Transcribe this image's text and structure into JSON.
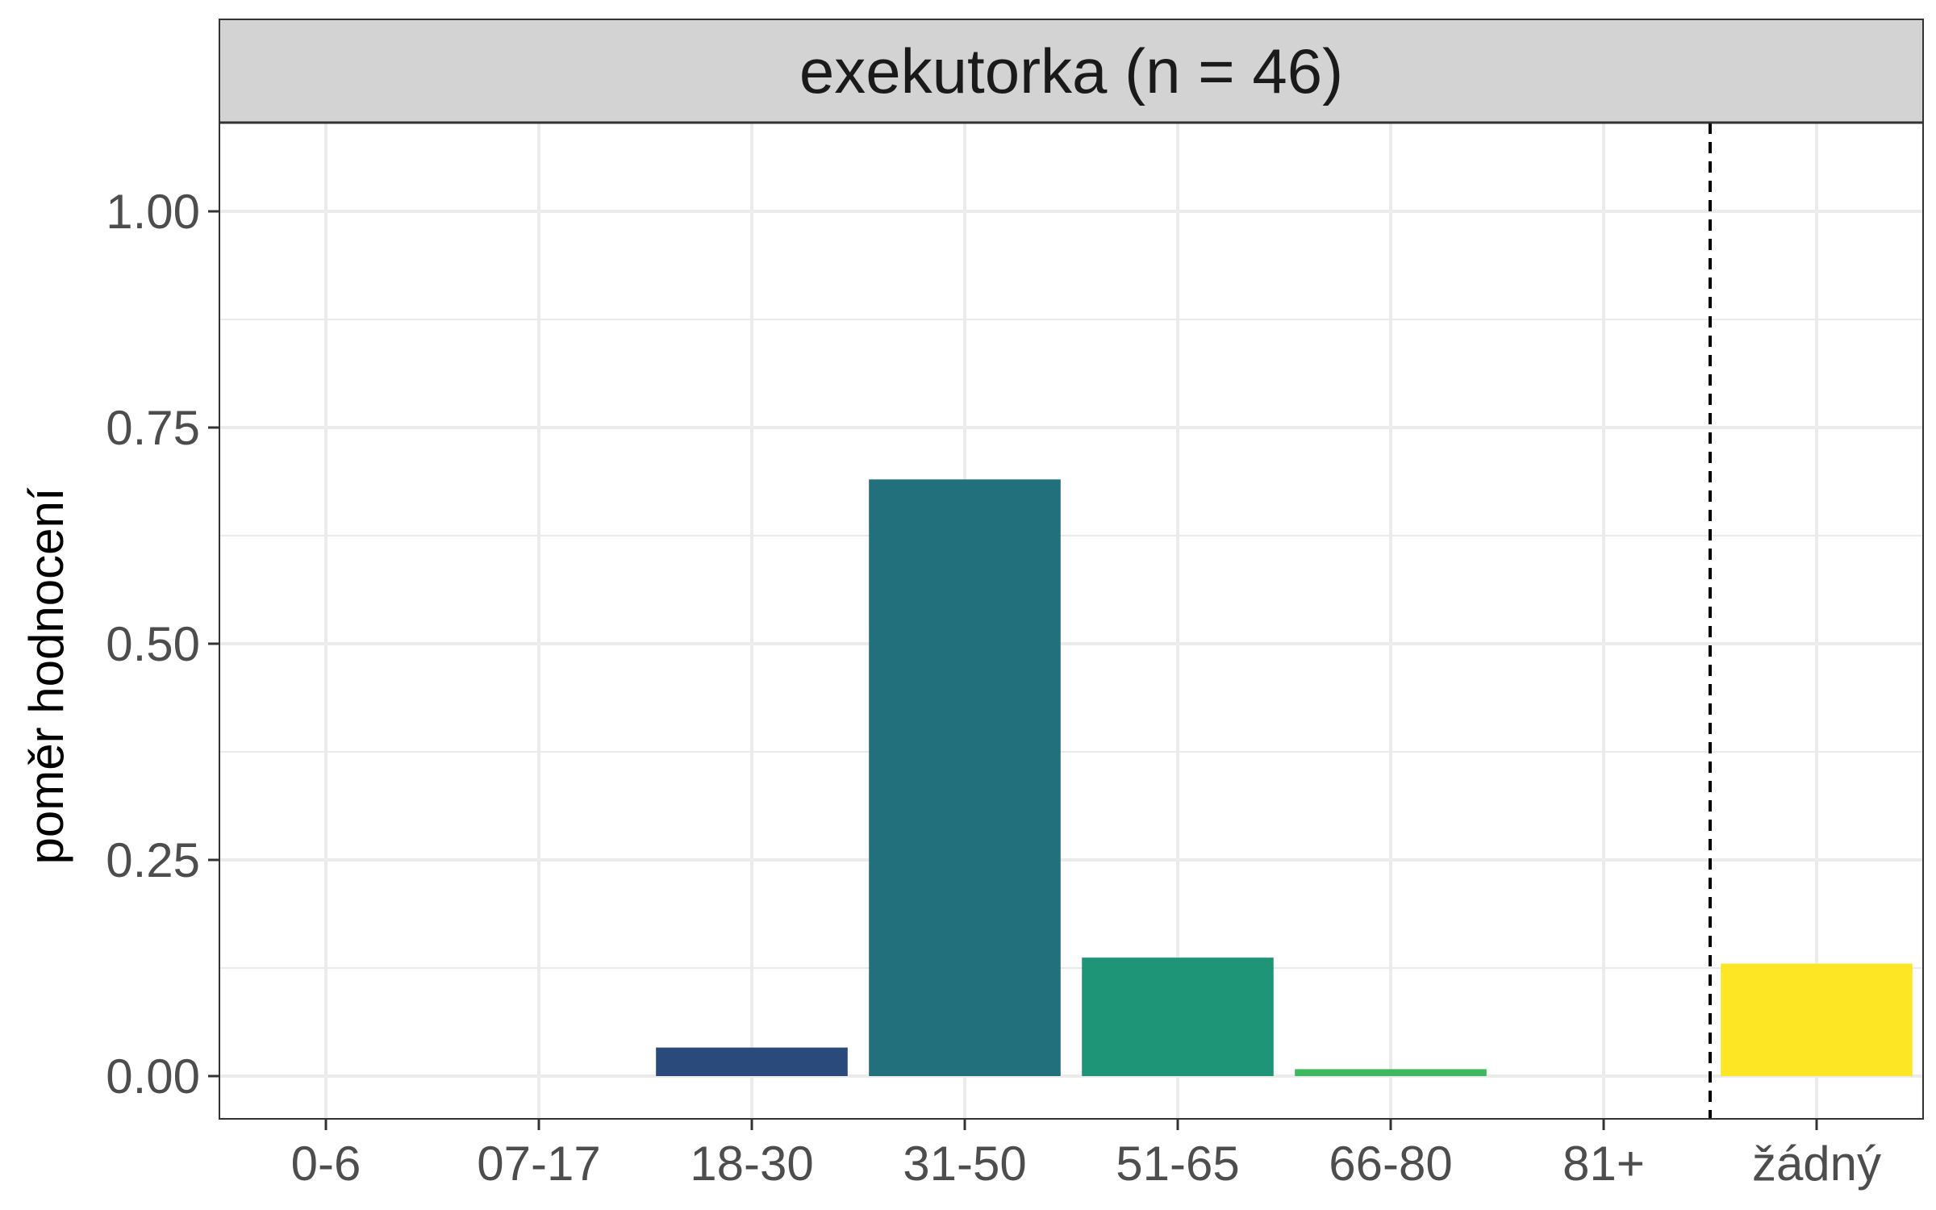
{
  "chart_data": {
    "type": "bar",
    "title": "exekutorka (n = 46)",
    "xlabel": "",
    "ylabel": "poměr hodnocení",
    "categories": [
      "0-6",
      "07-17",
      "18-30",
      "31-50",
      "51-65",
      "66-80",
      "81+",
      "žádný"
    ],
    "values": [
      0,
      0,
      0.033,
      0.69,
      0.137,
      0.008,
      0,
      0.13
    ],
    "colors": [
      "#440154",
      "#443a83",
      "#2a4a7b",
      "#21707c",
      "#1f9577",
      "#3db85f",
      "#94d741",
      "#fde725"
    ],
    "ylim": [
      0,
      1.1
    ],
    "yticks": [
      0,
      0.25,
      0.5,
      0.75,
      1
    ],
    "ytick_labels": [
      "0.00",
      "0.25",
      "0.50",
      "0.75",
      "1.00"
    ],
    "grid": true,
    "reference_line": {
      "between": [
        "81+",
        "žádný"
      ],
      "style": "dashed"
    },
    "strip_color": "#d3d3d3",
    "panel_border_color": "#333333",
    "gridline_color": "#ebebeb"
  }
}
